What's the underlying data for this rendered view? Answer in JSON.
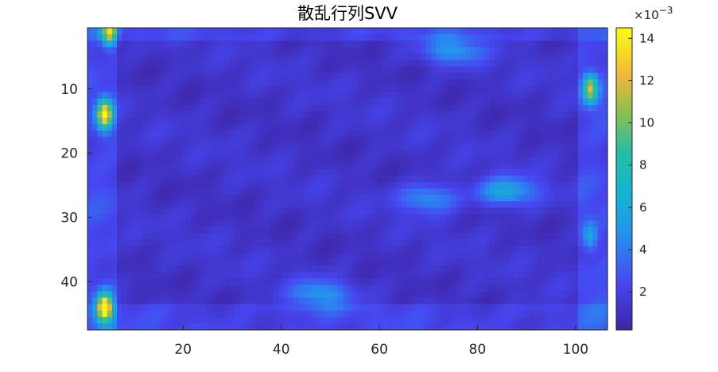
{
  "chart_data": {
    "type": "heatmap",
    "title": "散乱行列SVV",
    "xlabel": "",
    "ylabel": "",
    "x_range": [
      1,
      106
    ],
    "y_range": [
      1,
      47
    ],
    "y_reversed": true,
    "x_ticks": [
      20,
      40,
      60,
      80,
      100
    ],
    "y_ticks": [
      10,
      20,
      30,
      40
    ],
    "colorbar": {
      "range": [
        0.0002,
        0.0145
      ],
      "ticks": [
        2,
        4,
        6,
        8,
        10,
        12,
        14
      ],
      "exponent_label": "×10",
      "exponent_power": "−3",
      "colormap": "parula"
    },
    "values_unit": "×10^-3",
    "hotspots": [
      {
        "x": 4,
        "y": 44,
        "value": 14.5
      },
      {
        "x": 4,
        "y": 14,
        "value": 13.5
      },
      {
        "x": 5,
        "y": 1,
        "value": 11.5
      },
      {
        "x": 103,
        "y": 10,
        "value": 10.5
      },
      {
        "x": 103,
        "y": 33,
        "value": 5.0
      },
      {
        "x": 86,
        "y": 26,
        "value": 6.0
      },
      {
        "x": 70,
        "y": 27,
        "value": 5.0
      },
      {
        "x": 48,
        "y": 42,
        "value": 5.0
      },
      {
        "x": 75,
        "y": 4,
        "value": 5.0
      }
    ],
    "background_level": 1.2
  },
  "colors": {
    "axis": "#262626",
    "background": "#ffffff"
  }
}
